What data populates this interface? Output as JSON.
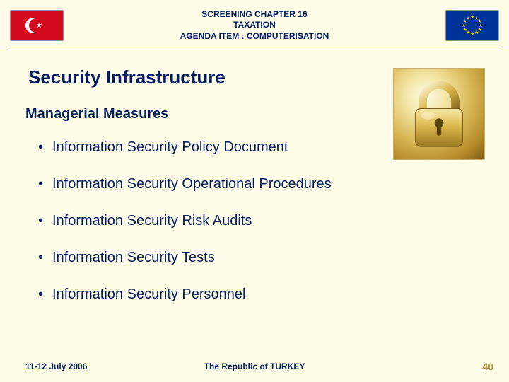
{
  "colors": {
    "background": "#fffde8",
    "text_navy": "#001e60",
    "accent_gold": "#b08a2e",
    "hr": "#3a4a7a",
    "tr_red": "#d40a1e",
    "tr_white": "#ffffff",
    "eu_blue": "#003399",
    "eu_gold": "#ffcc00"
  },
  "header": {
    "line1": "SCREENING CHAPTER 16",
    "line2": "TAXATION",
    "line3": "AGENDA ITEM :  COMPUTERISATION"
  },
  "title": "Security Infrastructure",
  "subtitle": "Managerial Measures",
  "bullets": [
    "Information Security Policy Document",
    "Information Security Operational Procedures",
    "Information Security Risk Audits",
    "Information Security Tests",
    "Information Security Personnel"
  ],
  "footer": {
    "date": "11-12 July 2006",
    "center": "The Republic of TURKEY",
    "page": "40"
  },
  "image": {
    "name": "padlock-image",
    "alt": "Gold padlock"
  },
  "typography": {
    "header_fontsize": 12,
    "title_fontsize": 26,
    "subtitle_fontsize": 20,
    "bullet_fontsize": 20,
    "footer_fontsize": 12
  }
}
